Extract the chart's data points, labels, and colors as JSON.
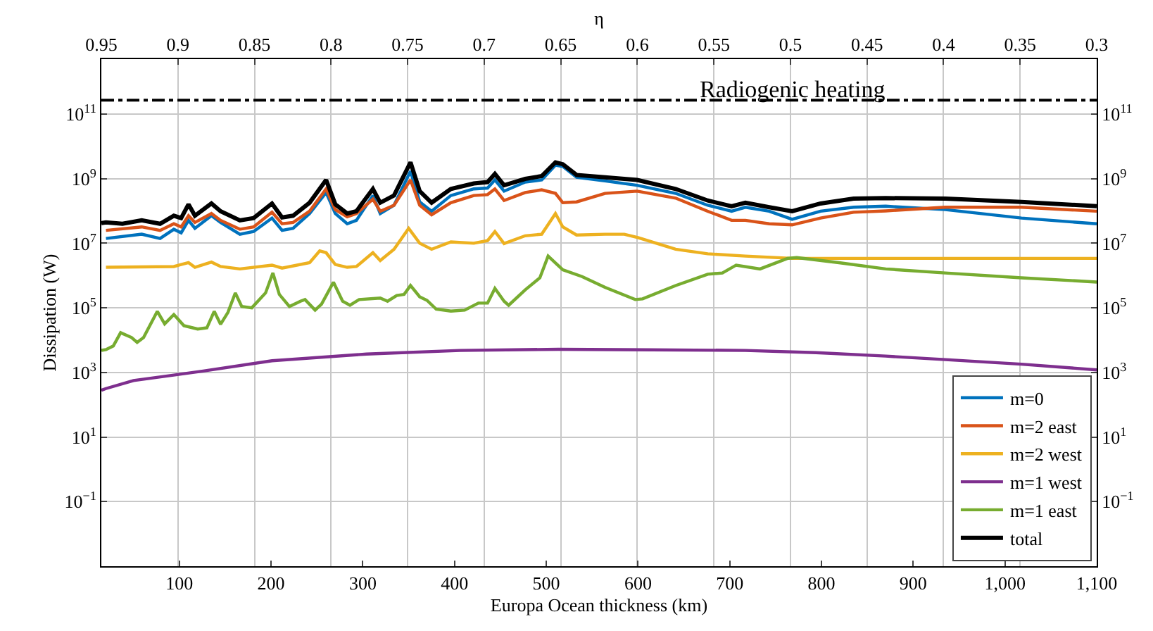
{
  "chart_data": {
    "type": "line",
    "xlabel": "Europa Ocean thickness (km)",
    "ylabel": "Dissipation (W)",
    "x2label": "η",
    "log": "y",
    "grid": true,
    "legend": "bottom right",
    "marker": "none",
    "line_style": "solid",
    "xlim": [
      15,
      1100
    ],
    "xticks": [
      100,
      200,
      300,
      400,
      500,
      600,
      700,
      800,
      900,
      {
        "value": 1000,
        "label": "1,000"
      },
      {
        "value": 1100,
        "label": "1,100"
      }
    ],
    "x2lim": [
      0.95,
      0.3
    ],
    "x2ticks": [
      0.95,
      0.9,
      0.85,
      0.8,
      0.75,
      0.7,
      0.65,
      0.6,
      0.55,
      0.5,
      0.45,
      0.4,
      0.35,
      0.3
    ],
    "ylim": [
      0.001,
      5000000000000.0
    ],
    "yticks": [
      {
        "value": 0.1,
        "label": "10$^{−1}$"
      },
      {
        "value": 10,
        "label": "10$^{1}$"
      },
      {
        "value": 1000,
        "label": "10$^{3}$"
      },
      {
        "value": 100000.0,
        "label": "10$^{5}$"
      },
      {
        "value": 10000000.0,
        "label": "10$^{7}$"
      },
      {
        "value": 1000000000.0,
        "label": "10$^{9}$"
      },
      {
        "value": 100000000000.0,
        "label": "10$^{11}$"
      }
    ],
    "ref_lines": [
      {
        "axis": "y",
        "value": 270000000000.0,
        "label": "Radiogenic heating",
        "color": "#000000",
        "line_style": "dashdot"
      }
    ],
    "series": [
      {
        "name": "m=0",
        "color": "#0072bd",
        "x": [
          20,
          59,
          79,
          94,
          102,
          110,
          117,
          135,
          145,
          166,
          181,
          201,
          212,
          224,
          242,
          260,
          270,
          283,
          293,
          311,
          319,
          334,
          352,
          362,
          375,
          396,
          421,
          436,
          444,
          454,
          477,
          495,
          510,
          518,
          533,
          564,
          599,
          641,
          676,
          702,
          717,
          743,
          768,
          799,
          835,
          870,
          935,
          1018,
          1100
        ],
        "values": [
          14000000.0,
          19000000.0,
          14000000.0,
          27000000.0,
          21000000.0,
          51000000.0,
          29000000.0,
          71000000.0,
          44000000.0,
          19000000.0,
          23000000.0,
          60000000.0,
          25000000.0,
          29000000.0,
          83000000.0,
          370000000.0,
          83000000.0,
          40000000.0,
          51000000.0,
          300000000.0,
          83000000.0,
          150000000.0,
          1700000000.0,
          190000000.0,
          98000000.0,
          300000000.0,
          480000000.0,
          510000000.0,
          910000000.0,
          410000000.0,
          780000000.0,
          910000000.0,
          2600000000.0,
          2400000000.0,
          1100000000.0,
          850000000.0,
          620000000.0,
          350000000.0,
          150000000.0,
          98000000.0,
          130000000.0,
          98000000.0,
          55000000.0,
          98000000.0,
          130000000.0,
          140000000.0,
          110000000.0,
          60000000.0,
          40000000.0
        ]
      },
      {
        "name": "m=2 east",
        "color": "#d95319",
        "x": [
          20,
          59,
          79,
          94,
          102,
          110,
          117,
          135,
          145,
          166,
          181,
          201,
          212,
          224,
          242,
          260,
          270,
          283,
          293,
          311,
          319,
          334,
          352,
          362,
          375,
          396,
          421,
          436,
          444,
          454,
          477,
          495,
          510,
          518,
          533,
          564,
          599,
          641,
          676,
          702,
          717,
          743,
          768,
          799,
          835,
          870,
          935,
          1018,
          1100
        ],
        "values": [
          25000000.0,
          32000000.0,
          25000000.0,
          40000000.0,
          32000000.0,
          71000000.0,
          44000000.0,
          83000000.0,
          51000000.0,
          27000000.0,
          32000000.0,
          91000000.0,
          40000000.0,
          44000000.0,
          98000000.0,
          480000000.0,
          110000000.0,
          66000000.0,
          83000000.0,
          230000000.0,
          98000000.0,
          150000000.0,
          910000000.0,
          150000000.0,
          76000000.0,
          180000000.0,
          300000000.0,
          320000000.0,
          480000000.0,
          210000000.0,
          370000000.0,
          450000000.0,
          350000000.0,
          180000000.0,
          190000000.0,
          350000000.0,
          410000000.0,
          250000000.0,
          98000000.0,
          51000000.0,
          51000000.0,
          40000000.0,
          37000000.0,
          60000000.0,
          91000000.0,
          100000000.0,
          130000000.0,
          130000000.0,
          98000000.0
        ]
      },
      {
        "name": "m=2 west",
        "color": "#edb120",
        "x": [
          20,
          94,
          110,
          117,
          135,
          145,
          166,
          201,
          212,
          242,
          253,
          260,
          270,
          283,
          293,
          311,
          319,
          334,
          350,
          362,
          375,
          396,
          421,
          436,
          444,
          454,
          477,
          495,
          510,
          518,
          533,
          564,
          585,
          600,
          641,
          676,
          717,
          768,
          820,
          935,
          1100
        ],
        "values": [
          1800000.0,
          1900000.0,
          2500000.0,
          1800000.0,
          2600000.0,
          1900000.0,
          1600000.0,
          2100000.0,
          1700000.0,
          2500000.0,
          5800000.0,
          5100000.0,
          2200000.0,
          1800000.0,
          1900000.0,
          5100000.0,
          2900000.0,
          6500000.0,
          29000000.0,
          10000000.0,
          6500000.0,
          11000000.0,
          10000000.0,
          12000000.0,
          23000000.0,
          9800000.0,
          17000000.0,
          19000000.0,
          83000000.0,
          32000000.0,
          18000000.0,
          19000000.0,
          19000000.0,
          15000000.0,
          6500000.0,
          4700000.0,
          4000000.0,
          3400000.0,
          3400000.0,
          3400000.0,
          3400000.0
        ]
      },
      {
        "name": "m=1 west",
        "color": "#7e2f8e",
        "x": [
          15,
          20,
          50,
          126,
          201,
          304,
          406,
          513,
          615,
          717,
          794,
          870,
          935,
          1018,
          1100
        ],
        "values": [
          280,
          316,
          560,
          1100,
          2300,
          3700,
          4800,
          5200,
          5000,
          4800,
          4100,
          3200,
          2500,
          1800,
          1200
        ]
      },
      {
        "name": "m=1 east",
        "color": "#77ac30",
        "x": [
          15,
          20,
          28,
          36,
          48,
          54,
          61,
          76,
          84,
          94,
          105,
          120,
          130,
          138,
          145,
          153,
          161,
          168,
          179,
          194,
          202,
          209,
          220,
          232,
          237,
          248,
          255,
          268,
          278,
          286,
          296,
          319,
          327,
          337,
          345,
          352,
          362,
          370,
          380,
          396,
          411,
          426,
          436,
          444,
          454,
          459,
          477,
          493,
          502,
          518,
          539,
          564,
          597,
          605,
          641,
          676,
          692,
          707,
          733,
          763,
          773,
          819,
          870,
          935,
          1018,
          1100
        ],
        "values": [
          4800.0,
          5100.0,
          6600.0,
          17000.0,
          12000.0,
          8500.0,
          12000.0,
          78000.0,
          32000.0,
          62000.0,
          28000.0,
          22000.0,
          24000.0,
          78000.0,
          31000.0,
          72000.0,
          290000.0,
          110000.0,
          100000.0,
          290000.0,
          1200000.0,
          260000.0,
          110000.0,
          160000.0,
          180000.0,
          85000.0,
          130000.0,
          620000.0,
          160000.0,
          120000.0,
          180000.0,
          200000.0,
          160000.0,
          240000.0,
          260000.0,
          490000.0,
          220000.0,
          170000.0,
          91000.0,
          79000.0,
          85000.0,
          140000.0,
          140000.0,
          400000.0,
          160000.0,
          120000.0,
          360000.0,
          850000.0,
          4000000.0,
          1500000.0,
          930000.0,
          430000.0,
          180000.0,
          190000.0,
          490000.0,
          1100000.0,
          1200000.0,
          2100000.0,
          1600000.0,
          3400000.0,
          3600000.0,
          2500000.0,
          1600000.0,
          1200000.0,
          850000.0,
          630000.0
        ]
      },
      {
        "name": "total",
        "color": "#000000",
        "x": [
          15,
          20,
          38,
          59,
          79,
          94,
          102,
          110,
          117,
          135,
          145,
          166,
          181,
          201,
          212,
          224,
          242,
          260,
          270,
          283,
          293,
          311,
          319,
          334,
          352,
          362,
          375,
          396,
          421,
          436,
          444,
          454,
          477,
          495,
          510,
          518,
          533,
          564,
          599,
          641,
          676,
          702,
          717,
          743,
          768,
          799,
          835,
          870,
          935,
          1018,
          1100
        ],
        "values": [
          42000000.0,
          44000000.0,
          40000000.0,
          51000000.0,
          40000000.0,
          71000000.0,
          60000000.0,
          160000000.0,
          71000000.0,
          170000000.0,
          98000000.0,
          51000000.0,
          60000000.0,
          170000000.0,
          63000000.0,
          71000000.0,
          180000000.0,
          910000000.0,
          160000000.0,
          83000000.0,
          98000000.0,
          480000000.0,
          180000000.0,
          300000000.0,
          3200000000.0,
          410000000.0,
          180000000.0,
          480000000.0,
          710000000.0,
          780000000.0,
          1400000000.0,
          620000000.0,
          980000000.0,
          1200000000.0,
          3200000000.0,
          2800000000.0,
          1300000000.0,
          1100000000.0,
          910000000.0,
          480000000.0,
          210000000.0,
          140000000.0,
          180000000.0,
          130000000.0,
          98000000.0,
          170000000.0,
          240000000.0,
          250000000.0,
          240000000.0,
          190000000.0,
          140000000.0
        ]
      }
    ]
  }
}
